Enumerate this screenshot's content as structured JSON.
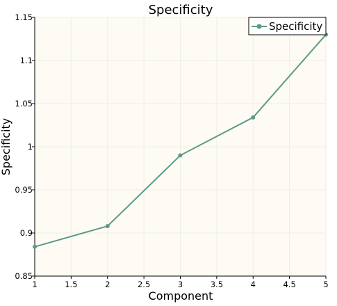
{
  "chart_data": {
    "type": "line",
    "title": "Specificity",
    "xlabel": "Component",
    "ylabel": "Specificity",
    "xlim": [
      1,
      5
    ],
    "ylim": [
      0.85,
      1.15
    ],
    "x_ticks": [
      "1",
      "1.5",
      "2",
      "2.5",
      "3",
      "3.5",
      "4",
      "4.5",
      "5"
    ],
    "y_ticks": [
      "0.85",
      "0.9",
      "0.95",
      "1",
      "1.05",
      "1.1",
      "1.15"
    ],
    "grid": true,
    "legend_position": "top-right",
    "series": [
      {
        "name": "Specificity",
        "color": "#5b9a8b",
        "x": [
          1,
          2,
          3,
          4,
          5
        ],
        "y": [
          0.884,
          0.908,
          0.99,
          1.034,
          1.13
        ]
      }
    ]
  },
  "colors": {
    "plot_background": "#fdfbf3",
    "grid": "#efefe6",
    "axis": "#000000"
  }
}
